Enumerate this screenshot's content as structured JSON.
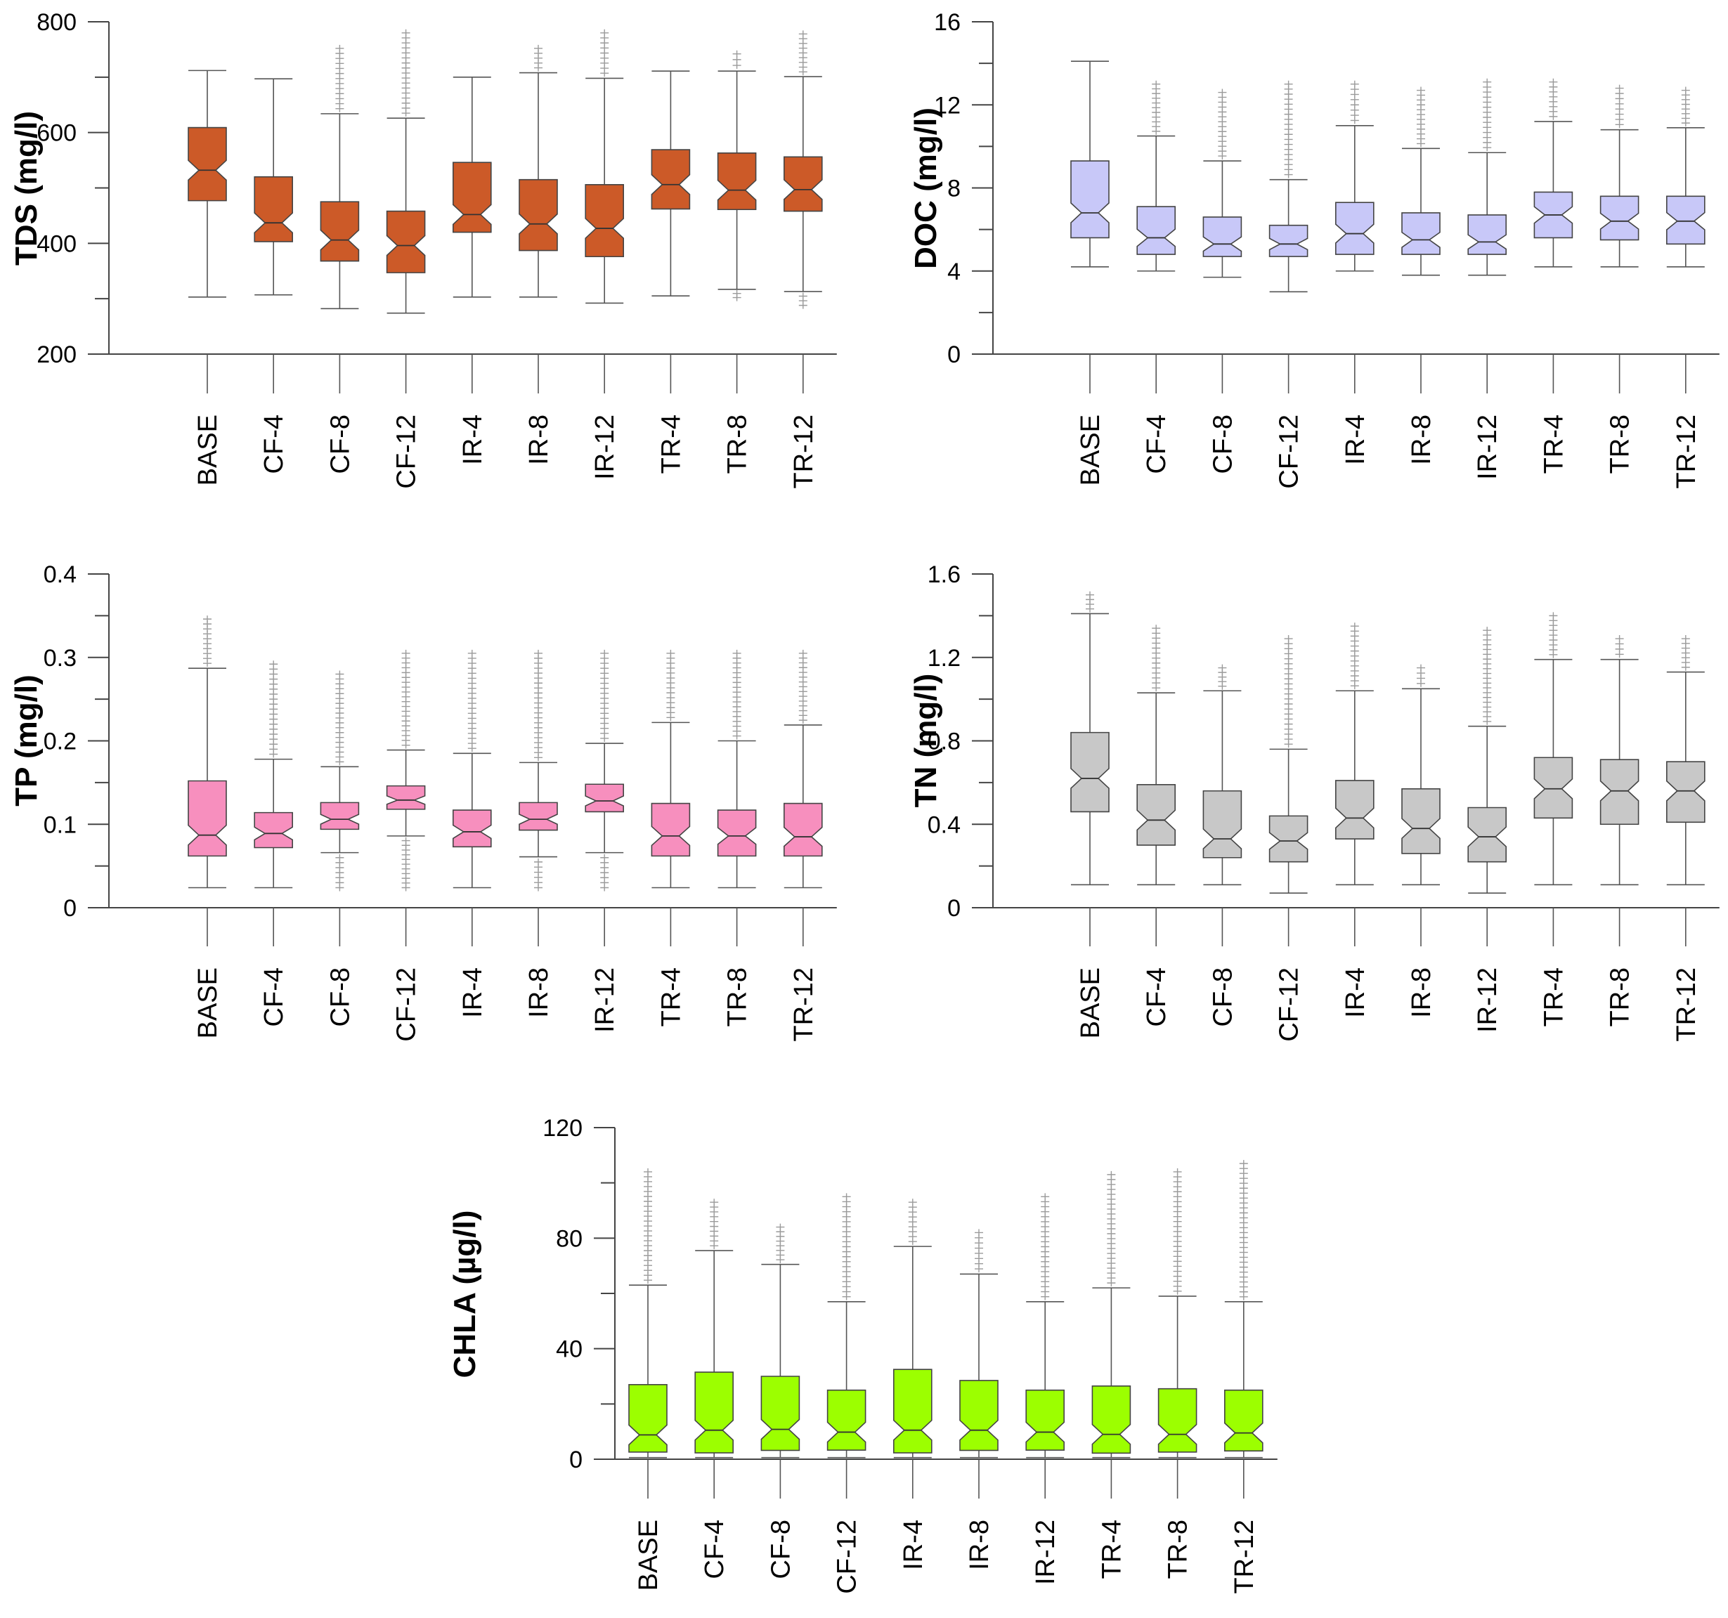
{
  "chart_data": [
    {
      "type": "box",
      "title": "",
      "ylabel": "TDS (mg/l)",
      "ylim": [
        200,
        800
      ],
      "yticks": [
        200,
        400,
        600,
        800
      ],
      "box_color": "#cc5a28",
      "categories": [
        "BASE",
        "CF-4",
        "CF-8",
        "CF-12",
        "IR-4",
        "IR-8",
        "IR-12",
        "TR-4",
        "TR-8",
        "TR-12"
      ],
      "boxes": [
        {
          "lo": 303,
          "q1": 477,
          "med": 532,
          "q3": 609,
          "hi": 712,
          "out_lo": null,
          "out_hi": null
        },
        {
          "lo": 307,
          "q1": 403,
          "med": 437,
          "q3": 520,
          "hi": 697,
          "out_lo": null,
          "out_hi": null
        },
        {
          "lo": 282,
          "q1": 368,
          "med": 406,
          "q3": 475,
          "hi": 634,
          "out_lo": null,
          "out_hi": 752
        },
        {
          "lo": 274,
          "q1": 347,
          "med": 396,
          "q3": 458,
          "hi": 626,
          "out_lo": null,
          "out_hi": 780
        },
        {
          "lo": 303,
          "q1": 420,
          "med": 452,
          "q3": 546,
          "hi": 700,
          "out_lo": null,
          "out_hi": null
        },
        {
          "lo": 303,
          "q1": 387,
          "med": 435,
          "q3": 515,
          "hi": 708,
          "out_lo": null,
          "out_hi": 752
        },
        {
          "lo": 292,
          "q1": 376,
          "med": 427,
          "q3": 506,
          "hi": 698,
          "out_lo": null,
          "out_hi": 780
        },
        {
          "lo": 305,
          "q1": 462,
          "med": 506,
          "q3": 569,
          "hi": 711,
          "out_lo": null,
          "out_hi": null
        },
        {
          "lo": 317,
          "q1": 461,
          "med": 496,
          "q3": 563,
          "hi": 711,
          "out_lo": 302,
          "out_hi": 742
        },
        {
          "lo": 313,
          "q1": 458,
          "med": 497,
          "q3": 556,
          "hi": 701,
          "out_lo": 288,
          "out_hi": 778
        }
      ]
    },
    {
      "type": "box",
      "title": "",
      "ylabel": "DOC (mg/l)",
      "ylim": [
        0,
        16
      ],
      "yticks": [
        0,
        4,
        8,
        12,
        16
      ],
      "box_color": "#c8c8f8",
      "categories": [
        "BASE",
        "CF-4",
        "CF-8",
        "CF-12",
        "IR-4",
        "IR-8",
        "IR-12",
        "TR-4",
        "TR-8",
        "TR-12"
      ],
      "boxes": [
        {
          "lo": 4.2,
          "q1": 5.6,
          "med": 6.8,
          "q3": 9.3,
          "hi": 14.1,
          "out_lo": null,
          "out_hi": null
        },
        {
          "lo": 4.0,
          "q1": 4.8,
          "med": 5.6,
          "q3": 7.1,
          "hi": 10.5,
          "out_lo": null,
          "out_hi": 13.0
        },
        {
          "lo": 3.7,
          "q1": 4.7,
          "med": 5.3,
          "q3": 6.6,
          "hi": 9.3,
          "out_lo": null,
          "out_hi": 12.6
        },
        {
          "lo": 3.0,
          "q1": 4.7,
          "med": 5.3,
          "q3": 6.2,
          "hi": 8.4,
          "out_lo": null,
          "out_hi": 13.0
        },
        {
          "lo": 4.0,
          "q1": 4.8,
          "med": 5.8,
          "q3": 7.3,
          "hi": 11.0,
          "out_lo": null,
          "out_hi": 13.0
        },
        {
          "lo": 3.8,
          "q1": 4.8,
          "med": 5.5,
          "q3": 6.8,
          "hi": 9.9,
          "out_lo": null,
          "out_hi": 12.7
        },
        {
          "lo": 3.8,
          "q1": 4.8,
          "med": 5.4,
          "q3": 6.7,
          "hi": 9.7,
          "out_lo": null,
          "out_hi": 13.1
        },
        {
          "lo": 4.2,
          "q1": 5.6,
          "med": 6.7,
          "q3": 7.8,
          "hi": 11.2,
          "out_lo": null,
          "out_hi": 13.1
        },
        {
          "lo": 4.2,
          "q1": 5.5,
          "med": 6.4,
          "q3": 7.6,
          "hi": 10.8,
          "out_lo": null,
          "out_hi": 12.8
        },
        {
          "lo": 4.2,
          "q1": 5.3,
          "med": 6.4,
          "q3": 7.6,
          "hi": 10.9,
          "out_lo": null,
          "out_hi": 12.7
        }
      ]
    },
    {
      "type": "box",
      "title": "",
      "ylabel": "TP (mg/l)",
      "ylim": [
        0,
        0.4
      ],
      "yticks": [
        0,
        0.1,
        0.2,
        0.3,
        0.4
      ],
      "box_color": "#f78fbe",
      "categories": [
        "BASE",
        "CF-4",
        "CF-8",
        "CF-12",
        "IR-4",
        "IR-8",
        "IR-12",
        "TR-4",
        "TR-8",
        "TR-12"
      ],
      "boxes": [
        {
          "lo": 0.024,
          "q1": 0.062,
          "med": 0.087,
          "q3": 0.152,
          "hi": 0.287,
          "out_lo": null,
          "out_hi": 0.346
        },
        {
          "lo": 0.024,
          "q1": 0.072,
          "med": 0.089,
          "q3": 0.114,
          "hi": 0.178,
          "out_lo": null,
          "out_hi": 0.292
        },
        {
          "lo": 0.066,
          "q1": 0.094,
          "med": 0.106,
          "q3": 0.126,
          "hi": 0.169,
          "out_lo": 0.024,
          "out_hi": 0.28
        },
        {
          "lo": 0.086,
          "q1": 0.118,
          "med": 0.129,
          "q3": 0.146,
          "hi": 0.189,
          "out_lo": 0.024,
          "out_hi": 0.305
        },
        {
          "lo": 0.024,
          "q1": 0.073,
          "med": 0.091,
          "q3": 0.117,
          "hi": 0.185,
          "out_lo": null,
          "out_hi": 0.305
        },
        {
          "lo": 0.061,
          "q1": 0.093,
          "med": 0.106,
          "q3": 0.126,
          "hi": 0.174,
          "out_lo": 0.024,
          "out_hi": 0.305
        },
        {
          "lo": 0.066,
          "q1": 0.115,
          "med": 0.128,
          "q3": 0.148,
          "hi": 0.197,
          "out_lo": 0.024,
          "out_hi": 0.305
        },
        {
          "lo": 0.024,
          "q1": 0.062,
          "med": 0.086,
          "q3": 0.125,
          "hi": 0.222,
          "out_lo": null,
          "out_hi": 0.305
        },
        {
          "lo": 0.024,
          "q1": 0.062,
          "med": 0.086,
          "q3": 0.117,
          "hi": 0.2,
          "out_lo": null,
          "out_hi": 0.305
        },
        {
          "lo": 0.024,
          "q1": 0.062,
          "med": 0.085,
          "q3": 0.125,
          "hi": 0.219,
          "out_lo": null,
          "out_hi": 0.305
        }
      ]
    },
    {
      "type": "box",
      "title": "",
      "ylabel": "TN (mg/l)",
      "ylim": [
        0,
        1.6
      ],
      "yticks": [
        0,
        0.4,
        0.8,
        1.2,
        1.6
      ],
      "box_color": "#c8c8c8",
      "categories": [
        "BASE",
        "CF-4",
        "CF-8",
        "CF-12",
        "IR-4",
        "IR-8",
        "IR-12",
        "TR-4",
        "TR-8",
        "TR-12"
      ],
      "boxes": [
        {
          "lo": 0.11,
          "q1": 0.46,
          "med": 0.62,
          "q3": 0.84,
          "hi": 1.41,
          "out_lo": null,
          "out_hi": 1.5
        },
        {
          "lo": 0.11,
          "q1": 0.3,
          "med": 0.42,
          "q3": 0.59,
          "hi": 1.03,
          "out_lo": null,
          "out_hi": 1.34
        },
        {
          "lo": 0.11,
          "q1": 0.24,
          "med": 0.33,
          "q3": 0.56,
          "hi": 1.04,
          "out_lo": null,
          "out_hi": 1.15
        },
        {
          "lo": 0.07,
          "q1": 0.22,
          "med": 0.32,
          "q3": 0.44,
          "hi": 0.76,
          "out_lo": null,
          "out_hi": 1.29
        },
        {
          "lo": 0.11,
          "q1": 0.33,
          "med": 0.43,
          "q3": 0.61,
          "hi": 1.04,
          "out_lo": null,
          "out_hi": 1.35
        },
        {
          "lo": 0.11,
          "q1": 0.26,
          "med": 0.38,
          "q3": 0.57,
          "hi": 1.05,
          "out_lo": null,
          "out_hi": 1.15
        },
        {
          "lo": 0.07,
          "q1": 0.22,
          "med": 0.34,
          "q3": 0.48,
          "hi": 0.87,
          "out_lo": null,
          "out_hi": 1.33
        },
        {
          "lo": 0.11,
          "q1": 0.43,
          "med": 0.57,
          "q3": 0.72,
          "hi": 1.19,
          "out_lo": null,
          "out_hi": 1.4
        },
        {
          "lo": 0.11,
          "q1": 0.4,
          "med": 0.56,
          "q3": 0.71,
          "hi": 1.19,
          "out_lo": null,
          "out_hi": 1.29
        },
        {
          "lo": 0.11,
          "q1": 0.41,
          "med": 0.56,
          "q3": 0.7,
          "hi": 1.13,
          "out_lo": null,
          "out_hi": 1.29
        }
      ]
    },
    {
      "type": "box",
      "title": "",
      "ylabel": "CHLA (µg/l)",
      "ylim": [
        0,
        120
      ],
      "yticks": [
        0,
        40,
        80,
        120
      ],
      "box_color": "#9cff00",
      "categories": [
        "BASE",
        "CF-4",
        "CF-8",
        "CF-12",
        "IR-4",
        "IR-8",
        "IR-12",
        "TR-4",
        "TR-8",
        "TR-12"
      ],
      "boxes": [
        {
          "lo": 0.6,
          "q1": 2.6,
          "med": 8.8,
          "q3": 27,
          "hi": 63,
          "out_lo": null,
          "out_hi": 104
        },
        {
          "lo": 0.6,
          "q1": 2.3,
          "med": 10.5,
          "q3": 31.5,
          "hi": 75.5,
          "out_lo": null,
          "out_hi": 93
        },
        {
          "lo": 0.6,
          "q1": 3.2,
          "med": 10.8,
          "q3": 30,
          "hi": 70.5,
          "out_lo": null,
          "out_hi": 84
        },
        {
          "lo": 0.6,
          "q1": 3.3,
          "med": 9.8,
          "q3": 25,
          "hi": 57,
          "out_lo": null,
          "out_hi": 95
        },
        {
          "lo": 0.6,
          "q1": 2.3,
          "med": 10.5,
          "q3": 32.5,
          "hi": 77,
          "out_lo": null,
          "out_hi": 93
        },
        {
          "lo": 0.6,
          "q1": 3.2,
          "med": 10.5,
          "q3": 28.5,
          "hi": 67,
          "out_lo": null,
          "out_hi": 82
        },
        {
          "lo": 0.6,
          "q1": 3.3,
          "med": 9.8,
          "q3": 25,
          "hi": 57,
          "out_lo": null,
          "out_hi": 95
        },
        {
          "lo": 0.6,
          "q1": 2.2,
          "med": 9.0,
          "q3": 26.5,
          "hi": 62,
          "out_lo": null,
          "out_hi": 103
        },
        {
          "lo": 0.6,
          "q1": 2.6,
          "med": 9.0,
          "q3": 25.5,
          "hi": 59,
          "out_lo": null,
          "out_hi": 104
        },
        {
          "lo": 0.6,
          "q1": 3.0,
          "med": 9.5,
          "q3": 25,
          "hi": 57,
          "out_lo": null,
          "out_hi": 107
        }
      ]
    }
  ]
}
